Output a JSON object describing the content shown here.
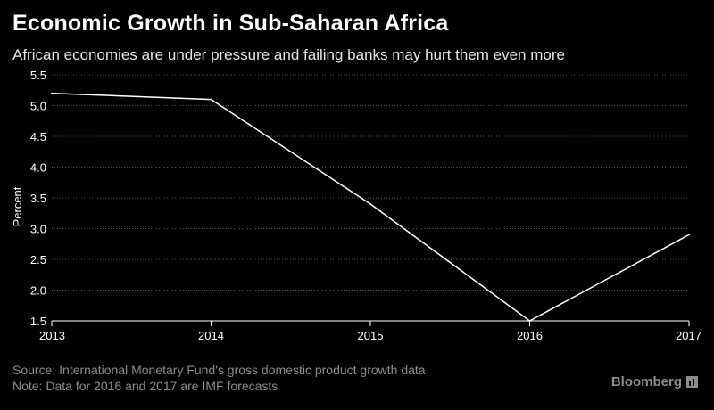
{
  "header": {
    "title": "Economic Growth in Sub-Saharan Africa",
    "subtitle": "African economies are under pressure and failing banks may hurt them even more"
  },
  "chart_data": {
    "type": "line",
    "title": "Economic Growth in Sub-Saharan Africa",
    "subtitle": "African economies are under pressure and failing banks may hurt them even more",
    "xlabel": "",
    "ylabel": "Percent",
    "x": [
      2013,
      2014,
      2015,
      2016,
      2017
    ],
    "x_tick_labels": [
      "2013",
      "2014",
      "2015",
      "2016",
      "2017"
    ],
    "series": [
      {
        "values": [
          5.2,
          5.1,
          3.4,
          1.5,
          2.9
        ]
      }
    ],
    "ylim": [
      1.5,
      5.5
    ],
    "y_ticks": [
      "1.5",
      "2.0",
      "2.5",
      "3.0",
      "3.5",
      "4.0",
      "4.5",
      "5.0",
      "5.5"
    ],
    "grid": "horizontal dotted",
    "colors": {
      "background": "#000000",
      "line": "#ffffff",
      "grid": "#555555",
      "text": "#ffffff"
    }
  },
  "footer": {
    "source": "Source: International Monetary Fund's gross domestic product growth data",
    "note": "Note: Data for 2016 and 2017 are IMF forecasts",
    "brand": "Bloomberg"
  }
}
